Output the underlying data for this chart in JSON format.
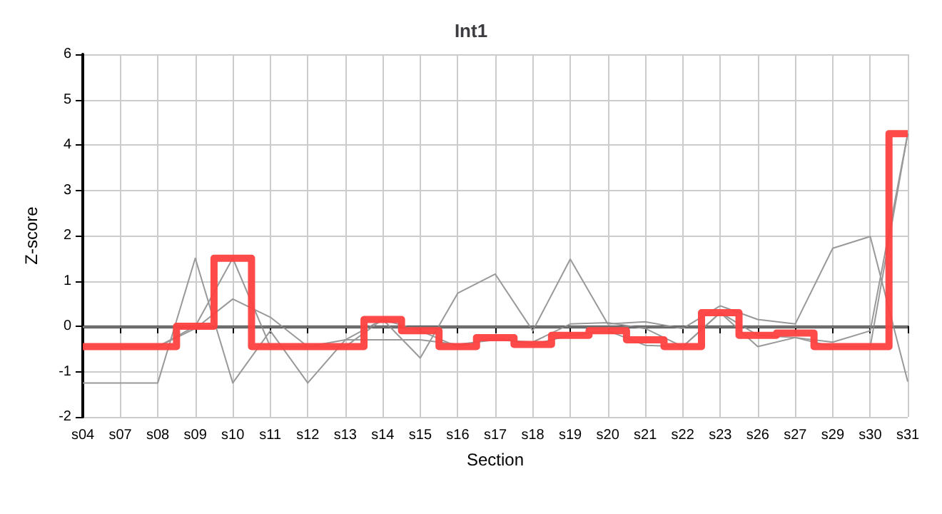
{
  "chart_data": {
    "type": "line",
    "title": "Int1",
    "xlabel": "Section",
    "ylabel": "Z-score",
    "categories": [
      "s04",
      "s07",
      "s08",
      "s09",
      "s10",
      "s11",
      "s12",
      "s13",
      "s14",
      "s15",
      "s16",
      "s17",
      "s18",
      "s19",
      "s20",
      "s21",
      "s22",
      "s23",
      "s26",
      "s27",
      "s29",
      "s30",
      "s31"
    ],
    "series": [
      {
        "color": "#999999",
        "values": [
          -1.25,
          -1.25,
          -1.25,
          1.5,
          -1.25,
          -0.1,
          -1.25,
          -0.3,
          0.15,
          -0.7,
          0.73,
          1.15,
          -0.1,
          1.48,
          0.05,
          0.1,
          -0.05,
          0.45,
          0.15,
          0.05,
          1.72,
          1.98,
          -1.22
        ]
      },
      {
        "color": "#999999",
        "values": [
          null,
          -0.45,
          -0.45,
          -0.05,
          0.6,
          0.2,
          -0.45,
          -0.3,
          -0.3,
          -0.3,
          -0.4,
          -0.3,
          -0.35,
          0.05,
          0.08,
          -0.05,
          -0.45,
          0.3,
          -0.2,
          -0.25,
          -0.35,
          -0.1,
          4.25
        ]
      },
      {
        "color": "#999999",
        "values": [
          null,
          -0.45,
          -0.45,
          0,
          1.5,
          -0.45,
          -0.45,
          -0.45,
          0.15,
          -0.1,
          -0.45,
          -0.25,
          -0.4,
          -0.2,
          -0.1,
          -0.42,
          -0.45,
          0.3,
          -0.45,
          -0.25,
          -0.45,
          -0.45,
          4.25
        ]
      },
      {
        "type": "step",
        "color": "#ff4040",
        "values": [
          -0.45,
          -0.45,
          -0.45,
          0,
          1.5,
          -0.45,
          -0.45,
          -0.45,
          0.15,
          -0.1,
          -0.45,
          -0.25,
          -0.4,
          -0.2,
          -0.1,
          -0.3,
          -0.45,
          0.3,
          -0.2,
          -0.15,
          -0.45,
          -0.45,
          4.25
        ]
      }
    ],
    "ylim": [
      -2,
      6
    ],
    "yticks": [
      -2,
      -1,
      0,
      1,
      2,
      3,
      4,
      5,
      6
    ],
    "ref_lines": [
      {
        "axis": "y",
        "value": 0,
        "color": "#808080"
      }
    ],
    "grid": true,
    "marker": "none"
  }
}
